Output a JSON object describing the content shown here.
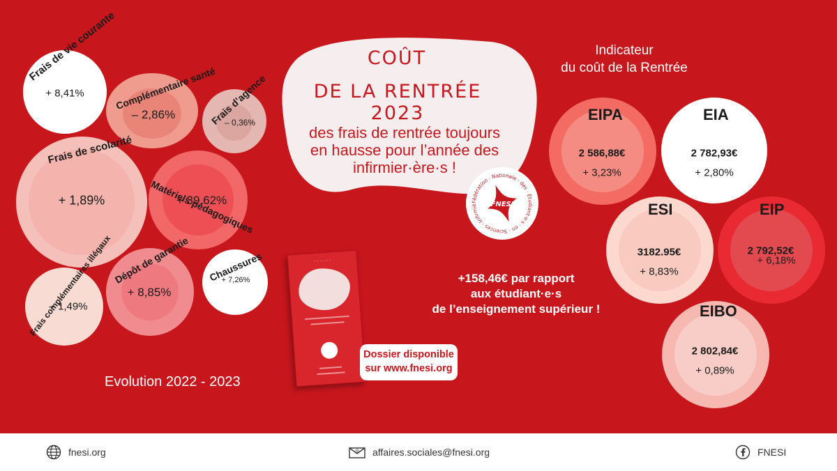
{
  "header": {
    "title_line1": "COÛT",
    "title_line2": "DE LA RENTRÉE 2023",
    "subtitle_lines": [
      "des frais de rentrée toujours",
      "en hausse pour l’année des",
      "infirmier·ère·s !"
    ]
  },
  "logo": {
    "brand": "FNESI",
    "ring_text": "Fédération · Nationale · des · Étudiant·e·s · en · Sciences · Infirmières ·"
  },
  "left_bubbles": [
    {
      "label": "Frais de vie courante",
      "value": "+ 8,41%"
    },
    {
      "label": "Complémentaire santé",
      "value": "– 2,86%"
    },
    {
      "label": "Frais d’agence",
      "value": "– 0,36%"
    },
    {
      "label": "Frais de scolarité",
      "value": "+ 1,89%"
    },
    {
      "label": "Matériels pédagogiques",
      "value": "+ 39,62%"
    },
    {
      "label": "Dépôt de garantie",
      "value": "+ 8,85%"
    },
    {
      "label": "Chaussures",
      "value": "+ 7,26%"
    },
    {
      "label": "Frais complémentaires illégaux",
      "value": "– 1,49%"
    }
  ],
  "evolution_label": "Evolution  2022 - 2023",
  "comparison": {
    "lines": [
      "+158,46€ par rapport",
      "aux étudiant·e·s",
      "de l’enseignement supérieur !"
    ]
  },
  "dossier": {
    "line1": "Dossier disponible",
    "line2": "sur www.fnesi.org"
  },
  "indicator": {
    "title_line1": "Indicateur",
    "title_line2": "du coût de la Rentrée",
    "items": [
      {
        "name": "EIPA",
        "amount": "2 586,88€",
        "change": "+ 3,23%"
      },
      {
        "name": "EIA",
        "amount": "2 782,93€",
        "change": "+ 2,80%"
      },
      {
        "name": "ESI",
        "amount": "3182.95€",
        "change": "+ 8,83%"
      },
      {
        "name": "EIP",
        "amount": "2 792,52€",
        "change": "+ 6,18%"
      },
      {
        "name": "EIBO",
        "amount": "2 802,84€",
        "change": "+ 0,89%"
      }
    ]
  },
  "footer": {
    "website": "fnesi.org",
    "email": "affaires.sociales@fnesi.org",
    "facebook": "FNESI"
  },
  "colors": {
    "background": "#c8161d",
    "accent_red": "#c8161d",
    "white": "#ffffff"
  }
}
